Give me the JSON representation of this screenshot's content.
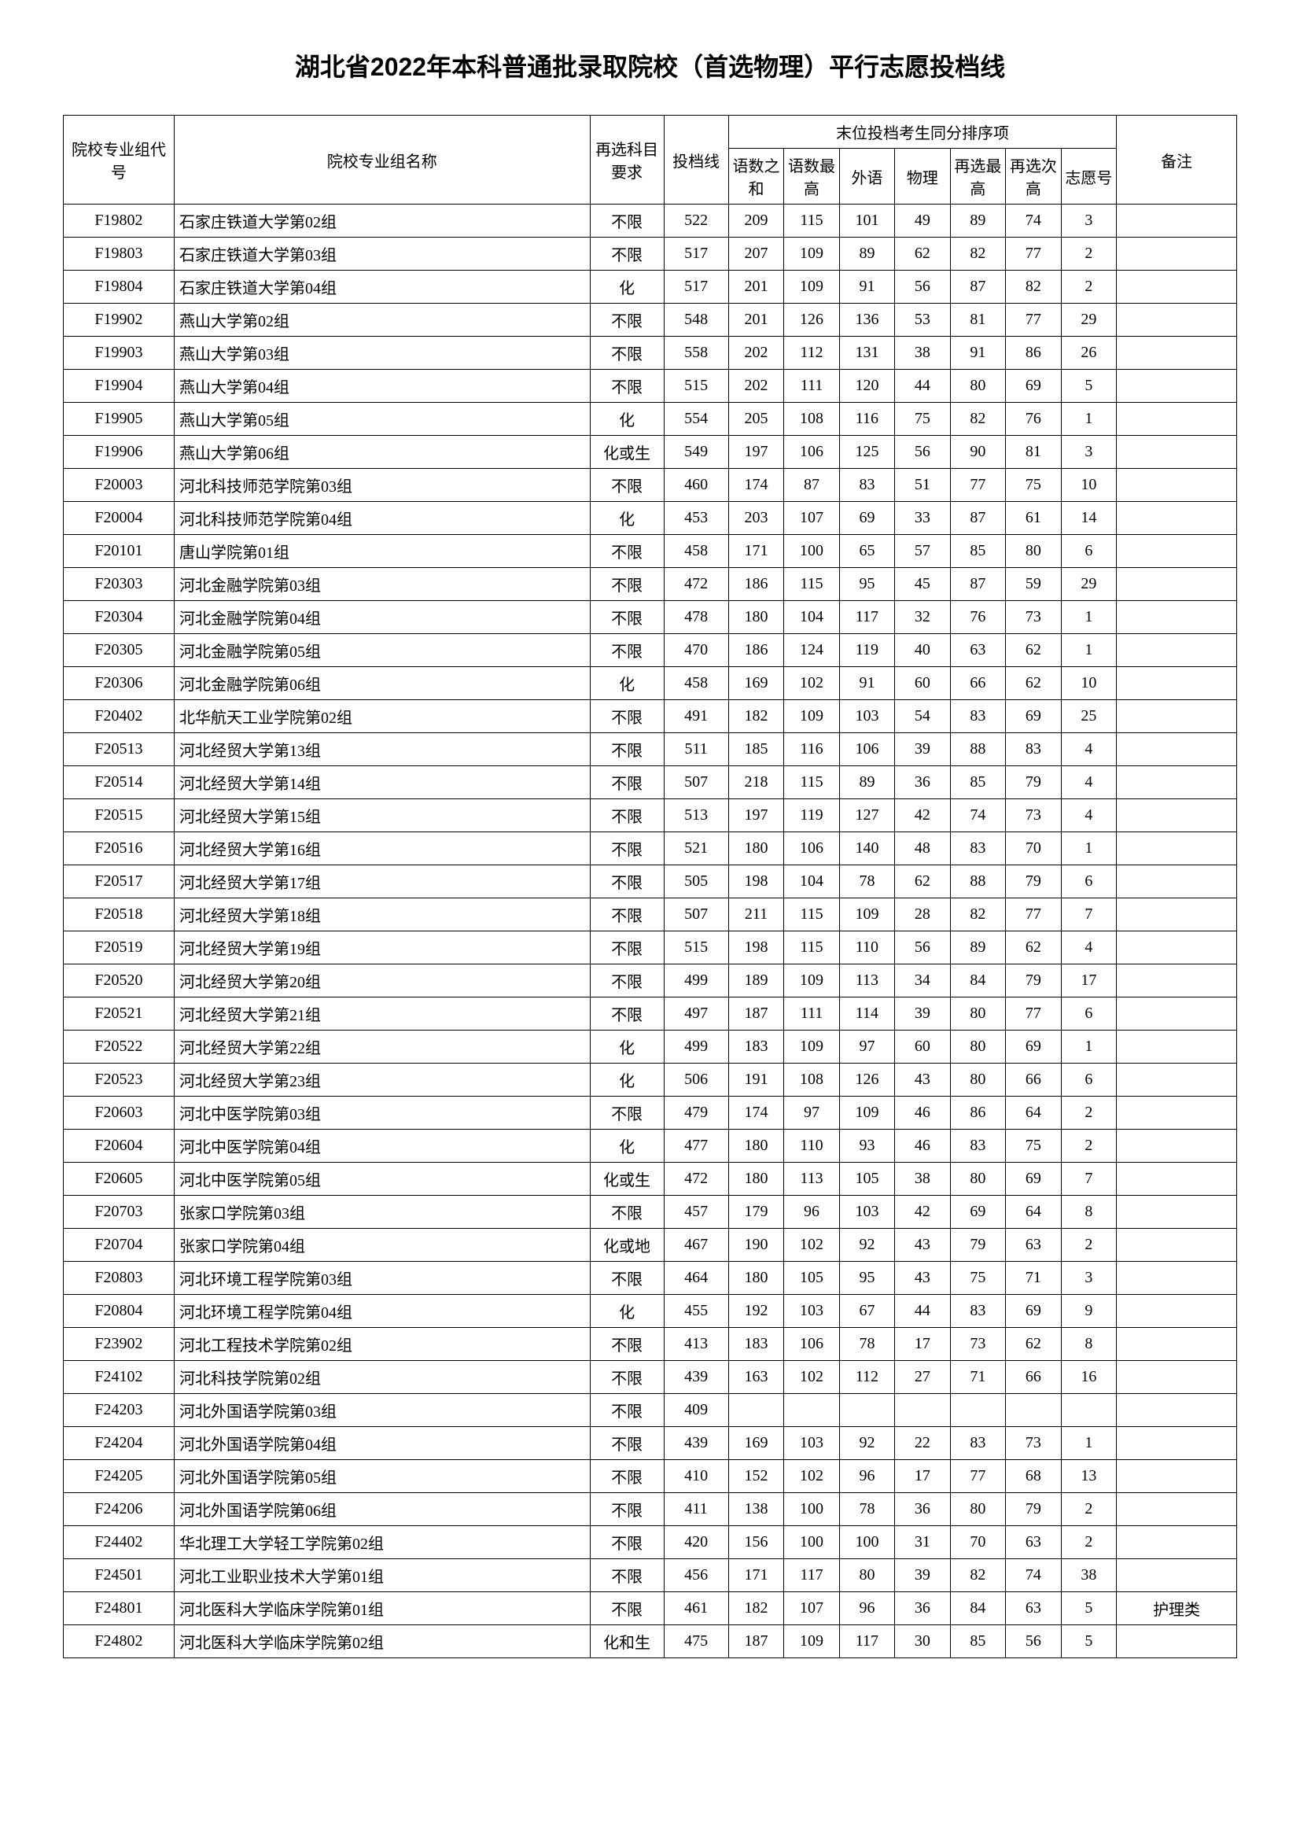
{
  "title": "湖北省2022年本科普通批录取院校（首选物理）平行志愿投档线",
  "headers": {
    "code": "院校专业组代号",
    "name": "院校专业组名称",
    "subject": "再选科目要求",
    "score": "投档线",
    "tiebreak_group": "末位投档考生同分排序项",
    "sum": "语数之和",
    "chinese_max": "语数最高",
    "foreign": "外语",
    "physics": "物理",
    "elective_max": "再选最高",
    "elective_second": "再选次高",
    "wish_no": "志愿号",
    "remark": "备注"
  },
  "column_widths": {
    "code": 120,
    "name": 450,
    "subject": 80,
    "score": 70,
    "detail": 60,
    "remark": 130
  },
  "rows": [
    {
      "code": "F19802",
      "name": "石家庄铁道大学第02组",
      "subject": "不限",
      "score": "522",
      "sum": "209",
      "cmax": "115",
      "foreign": "101",
      "physics": "49",
      "emax": "89",
      "esec": "74",
      "wish": "3",
      "remark": ""
    },
    {
      "code": "F19803",
      "name": "石家庄铁道大学第03组",
      "subject": "不限",
      "score": "517",
      "sum": "207",
      "cmax": "109",
      "foreign": "89",
      "physics": "62",
      "emax": "82",
      "esec": "77",
      "wish": "2",
      "remark": ""
    },
    {
      "code": "F19804",
      "name": "石家庄铁道大学第04组",
      "subject": "化",
      "score": "517",
      "sum": "201",
      "cmax": "109",
      "foreign": "91",
      "physics": "56",
      "emax": "87",
      "esec": "82",
      "wish": "2",
      "remark": ""
    },
    {
      "code": "F19902",
      "name": "燕山大学第02组",
      "subject": "不限",
      "score": "548",
      "sum": "201",
      "cmax": "126",
      "foreign": "136",
      "physics": "53",
      "emax": "81",
      "esec": "77",
      "wish": "29",
      "remark": ""
    },
    {
      "code": "F19903",
      "name": "燕山大学第03组",
      "subject": "不限",
      "score": "558",
      "sum": "202",
      "cmax": "112",
      "foreign": "131",
      "physics": "38",
      "emax": "91",
      "esec": "86",
      "wish": "26",
      "remark": ""
    },
    {
      "code": "F19904",
      "name": "燕山大学第04组",
      "subject": "不限",
      "score": "515",
      "sum": "202",
      "cmax": "111",
      "foreign": "120",
      "physics": "44",
      "emax": "80",
      "esec": "69",
      "wish": "5",
      "remark": ""
    },
    {
      "code": "F19905",
      "name": "燕山大学第05组",
      "subject": "化",
      "score": "554",
      "sum": "205",
      "cmax": "108",
      "foreign": "116",
      "physics": "75",
      "emax": "82",
      "esec": "76",
      "wish": "1",
      "remark": ""
    },
    {
      "code": "F19906",
      "name": "燕山大学第06组",
      "subject": "化或生",
      "score": "549",
      "sum": "197",
      "cmax": "106",
      "foreign": "125",
      "physics": "56",
      "emax": "90",
      "esec": "81",
      "wish": "3",
      "remark": ""
    },
    {
      "code": "F20003",
      "name": "河北科技师范学院第03组",
      "subject": "不限",
      "score": "460",
      "sum": "174",
      "cmax": "87",
      "foreign": "83",
      "physics": "51",
      "emax": "77",
      "esec": "75",
      "wish": "10",
      "remark": ""
    },
    {
      "code": "F20004",
      "name": "河北科技师范学院第04组",
      "subject": "化",
      "score": "453",
      "sum": "203",
      "cmax": "107",
      "foreign": "69",
      "physics": "33",
      "emax": "87",
      "esec": "61",
      "wish": "14",
      "remark": ""
    },
    {
      "code": "F20101",
      "name": "唐山学院第01组",
      "subject": "不限",
      "score": "458",
      "sum": "171",
      "cmax": "100",
      "foreign": "65",
      "physics": "57",
      "emax": "85",
      "esec": "80",
      "wish": "6",
      "remark": ""
    },
    {
      "code": "F20303",
      "name": "河北金融学院第03组",
      "subject": "不限",
      "score": "472",
      "sum": "186",
      "cmax": "115",
      "foreign": "95",
      "physics": "45",
      "emax": "87",
      "esec": "59",
      "wish": "29",
      "remark": ""
    },
    {
      "code": "F20304",
      "name": "河北金融学院第04组",
      "subject": "不限",
      "score": "478",
      "sum": "180",
      "cmax": "104",
      "foreign": "117",
      "physics": "32",
      "emax": "76",
      "esec": "73",
      "wish": "1",
      "remark": ""
    },
    {
      "code": "F20305",
      "name": "河北金融学院第05组",
      "subject": "不限",
      "score": "470",
      "sum": "186",
      "cmax": "124",
      "foreign": "119",
      "physics": "40",
      "emax": "63",
      "esec": "62",
      "wish": "1",
      "remark": ""
    },
    {
      "code": "F20306",
      "name": "河北金融学院第06组",
      "subject": "化",
      "score": "458",
      "sum": "169",
      "cmax": "102",
      "foreign": "91",
      "physics": "60",
      "emax": "66",
      "esec": "62",
      "wish": "10",
      "remark": ""
    },
    {
      "code": "F20402",
      "name": "北华航天工业学院第02组",
      "subject": "不限",
      "score": "491",
      "sum": "182",
      "cmax": "109",
      "foreign": "103",
      "physics": "54",
      "emax": "83",
      "esec": "69",
      "wish": "25",
      "remark": ""
    },
    {
      "code": "F20513",
      "name": "河北经贸大学第13组",
      "subject": "不限",
      "score": "511",
      "sum": "185",
      "cmax": "116",
      "foreign": "106",
      "physics": "39",
      "emax": "88",
      "esec": "83",
      "wish": "4",
      "remark": ""
    },
    {
      "code": "F20514",
      "name": "河北经贸大学第14组",
      "subject": "不限",
      "score": "507",
      "sum": "218",
      "cmax": "115",
      "foreign": "89",
      "physics": "36",
      "emax": "85",
      "esec": "79",
      "wish": "4",
      "remark": ""
    },
    {
      "code": "F20515",
      "name": "河北经贸大学第15组",
      "subject": "不限",
      "score": "513",
      "sum": "197",
      "cmax": "119",
      "foreign": "127",
      "physics": "42",
      "emax": "74",
      "esec": "73",
      "wish": "4",
      "remark": ""
    },
    {
      "code": "F20516",
      "name": "河北经贸大学第16组",
      "subject": "不限",
      "score": "521",
      "sum": "180",
      "cmax": "106",
      "foreign": "140",
      "physics": "48",
      "emax": "83",
      "esec": "70",
      "wish": "1",
      "remark": ""
    },
    {
      "code": "F20517",
      "name": "河北经贸大学第17组",
      "subject": "不限",
      "score": "505",
      "sum": "198",
      "cmax": "104",
      "foreign": "78",
      "physics": "62",
      "emax": "88",
      "esec": "79",
      "wish": "6",
      "remark": ""
    },
    {
      "code": "F20518",
      "name": "河北经贸大学第18组",
      "subject": "不限",
      "score": "507",
      "sum": "211",
      "cmax": "115",
      "foreign": "109",
      "physics": "28",
      "emax": "82",
      "esec": "77",
      "wish": "7",
      "remark": ""
    },
    {
      "code": "F20519",
      "name": "河北经贸大学第19组",
      "subject": "不限",
      "score": "515",
      "sum": "198",
      "cmax": "115",
      "foreign": "110",
      "physics": "56",
      "emax": "89",
      "esec": "62",
      "wish": "4",
      "remark": ""
    },
    {
      "code": "F20520",
      "name": "河北经贸大学第20组",
      "subject": "不限",
      "score": "499",
      "sum": "189",
      "cmax": "109",
      "foreign": "113",
      "physics": "34",
      "emax": "84",
      "esec": "79",
      "wish": "17",
      "remark": ""
    },
    {
      "code": "F20521",
      "name": "河北经贸大学第21组",
      "subject": "不限",
      "score": "497",
      "sum": "187",
      "cmax": "111",
      "foreign": "114",
      "physics": "39",
      "emax": "80",
      "esec": "77",
      "wish": "6",
      "remark": ""
    },
    {
      "code": "F20522",
      "name": "河北经贸大学第22组",
      "subject": "化",
      "score": "499",
      "sum": "183",
      "cmax": "109",
      "foreign": "97",
      "physics": "60",
      "emax": "80",
      "esec": "69",
      "wish": "1",
      "remark": ""
    },
    {
      "code": "F20523",
      "name": "河北经贸大学第23组",
      "subject": "化",
      "score": "506",
      "sum": "191",
      "cmax": "108",
      "foreign": "126",
      "physics": "43",
      "emax": "80",
      "esec": "66",
      "wish": "6",
      "remark": ""
    },
    {
      "code": "F20603",
      "name": "河北中医学院第03组",
      "subject": "不限",
      "score": "479",
      "sum": "174",
      "cmax": "97",
      "foreign": "109",
      "physics": "46",
      "emax": "86",
      "esec": "64",
      "wish": "2",
      "remark": ""
    },
    {
      "code": "F20604",
      "name": "河北中医学院第04组",
      "subject": "化",
      "score": "477",
      "sum": "180",
      "cmax": "110",
      "foreign": "93",
      "physics": "46",
      "emax": "83",
      "esec": "75",
      "wish": "2",
      "remark": ""
    },
    {
      "code": "F20605",
      "name": "河北中医学院第05组",
      "subject": "化或生",
      "score": "472",
      "sum": "180",
      "cmax": "113",
      "foreign": "105",
      "physics": "38",
      "emax": "80",
      "esec": "69",
      "wish": "7",
      "remark": ""
    },
    {
      "code": "F20703",
      "name": "张家口学院第03组",
      "subject": "不限",
      "score": "457",
      "sum": "179",
      "cmax": "96",
      "foreign": "103",
      "physics": "42",
      "emax": "69",
      "esec": "64",
      "wish": "8",
      "remark": ""
    },
    {
      "code": "F20704",
      "name": "张家口学院第04组",
      "subject": "化或地",
      "score": "467",
      "sum": "190",
      "cmax": "102",
      "foreign": "92",
      "physics": "43",
      "emax": "79",
      "esec": "63",
      "wish": "2",
      "remark": ""
    },
    {
      "code": "F20803",
      "name": "河北环境工程学院第03组",
      "subject": "不限",
      "score": "464",
      "sum": "180",
      "cmax": "105",
      "foreign": "95",
      "physics": "43",
      "emax": "75",
      "esec": "71",
      "wish": "3",
      "remark": ""
    },
    {
      "code": "F20804",
      "name": "河北环境工程学院第04组",
      "subject": "化",
      "score": "455",
      "sum": "192",
      "cmax": "103",
      "foreign": "67",
      "physics": "44",
      "emax": "83",
      "esec": "69",
      "wish": "9",
      "remark": ""
    },
    {
      "code": "F23902",
      "name": "河北工程技术学院第02组",
      "subject": "不限",
      "score": "413",
      "sum": "183",
      "cmax": "106",
      "foreign": "78",
      "physics": "17",
      "emax": "73",
      "esec": "62",
      "wish": "8",
      "remark": ""
    },
    {
      "code": "F24102",
      "name": "河北科技学院第02组",
      "subject": "不限",
      "score": "439",
      "sum": "163",
      "cmax": "102",
      "foreign": "112",
      "physics": "27",
      "emax": "71",
      "esec": "66",
      "wish": "16",
      "remark": ""
    },
    {
      "code": "F24203",
      "name": "河北外国语学院第03组",
      "subject": "不限",
      "score": "409",
      "sum": "",
      "cmax": "",
      "foreign": "",
      "physics": "",
      "emax": "",
      "esec": "",
      "wish": "",
      "remark": ""
    },
    {
      "code": "F24204",
      "name": "河北外国语学院第04组",
      "subject": "不限",
      "score": "439",
      "sum": "169",
      "cmax": "103",
      "foreign": "92",
      "physics": "22",
      "emax": "83",
      "esec": "73",
      "wish": "1",
      "remark": ""
    },
    {
      "code": "F24205",
      "name": "河北外国语学院第05组",
      "subject": "不限",
      "score": "410",
      "sum": "152",
      "cmax": "102",
      "foreign": "96",
      "physics": "17",
      "emax": "77",
      "esec": "68",
      "wish": "13",
      "remark": ""
    },
    {
      "code": "F24206",
      "name": "河北外国语学院第06组",
      "subject": "不限",
      "score": "411",
      "sum": "138",
      "cmax": "100",
      "foreign": "78",
      "physics": "36",
      "emax": "80",
      "esec": "79",
      "wish": "2",
      "remark": ""
    },
    {
      "code": "F24402",
      "name": "华北理工大学轻工学院第02组",
      "subject": "不限",
      "score": "420",
      "sum": "156",
      "cmax": "100",
      "foreign": "100",
      "physics": "31",
      "emax": "70",
      "esec": "63",
      "wish": "2",
      "remark": ""
    },
    {
      "code": "F24501",
      "name": "河北工业职业技术大学第01组",
      "subject": "不限",
      "score": "456",
      "sum": "171",
      "cmax": "117",
      "foreign": "80",
      "physics": "39",
      "emax": "82",
      "esec": "74",
      "wish": "38",
      "remark": ""
    },
    {
      "code": "F24801",
      "name": "河北医科大学临床学院第01组",
      "subject": "不限",
      "score": "461",
      "sum": "182",
      "cmax": "107",
      "foreign": "96",
      "physics": "36",
      "emax": "84",
      "esec": "63",
      "wish": "5",
      "remark": "护理类"
    },
    {
      "code": "F24802",
      "name": "河北医科大学临床学院第02组",
      "subject": "化和生",
      "score": "475",
      "sum": "187",
      "cmax": "109",
      "foreign": "117",
      "physics": "30",
      "emax": "85",
      "esec": "56",
      "wish": "5",
      "remark": ""
    }
  ]
}
